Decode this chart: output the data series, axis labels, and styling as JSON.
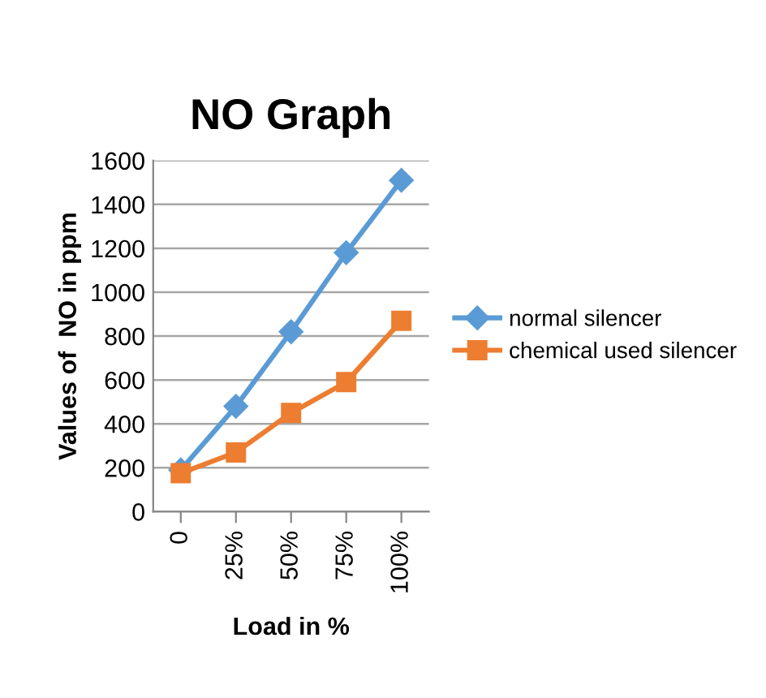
{
  "chart_data": {
    "type": "line",
    "title": "NO Graph",
    "xlabel": "Load in %",
    "ylabel": "Values of  NO in ppm",
    "categories": [
      "0",
      "25%",
      "50%",
      "75%",
      "100%"
    ],
    "series": [
      {
        "name": "normal silencer",
        "color": "#5b9bd5",
        "marker": "diamond",
        "values": [
          190,
          480,
          820,
          1180,
          1510
        ]
      },
      {
        "name": "chemical used silencer",
        "color": "#ed7d31",
        "marker": "square",
        "values": [
          175,
          270,
          450,
          590,
          870
        ]
      }
    ],
    "ylim": [
      0,
      1600
    ],
    "yticks": [
      0,
      200,
      400,
      600,
      800,
      1000,
      1200,
      1400,
      1600
    ],
    "grid": "y",
    "legend": "right"
  }
}
